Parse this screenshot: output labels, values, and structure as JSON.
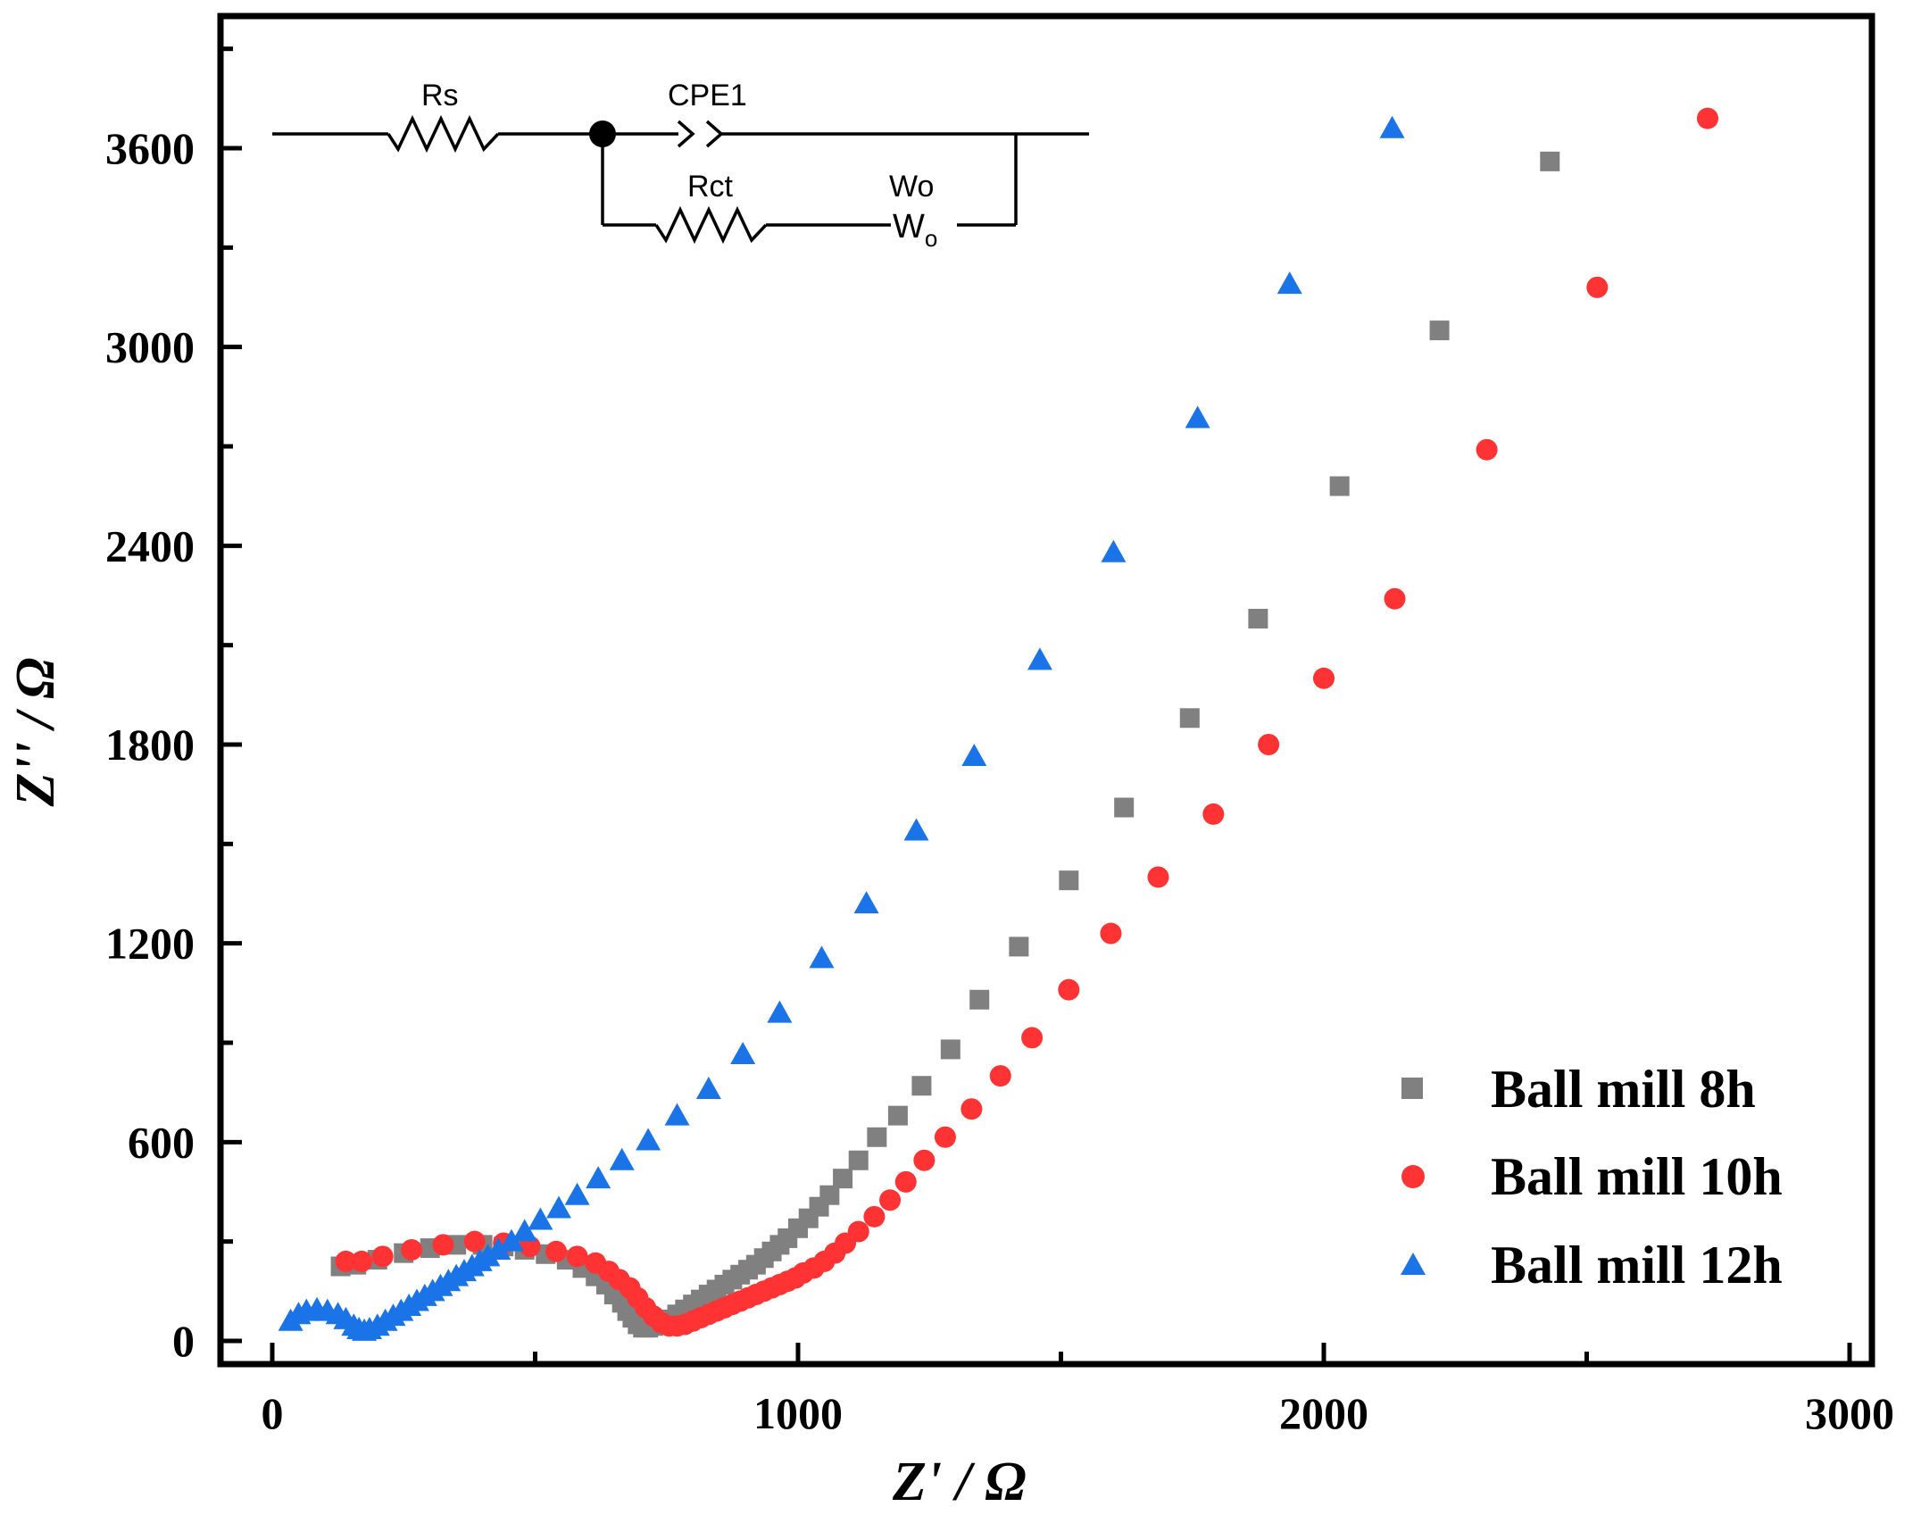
{
  "chart_data": {
    "type": "scatter",
    "title": "",
    "xlabel": "Z' / Ω",
    "ylabel": "Z'' / Ω",
    "xlim": [
      -100,
      3000
    ],
    "ylim": [
      -100,
      4000
    ],
    "x_ticks": [
      "0",
      "1000",
      "2000",
      "3000"
    ],
    "y_ticks": [
      "0",
      "600",
      "1200",
      "1800",
      "2400",
      "3000",
      "3600"
    ],
    "x_tick_values": [
      0,
      1000,
      2000,
      3000
    ],
    "y_tick_values": [
      0,
      600,
      1200,
      1800,
      2400,
      3000,
      3600
    ],
    "legend_position": "bottom-right",
    "series": [
      {
        "name": "Ball mill 8h",
        "marker": "square",
        "color": "#808080",
        "x": [
          130,
          160,
          200,
          250,
          300,
          350,
          400,
          440,
          480,
          520,
          560,
          590,
          615,
          635,
          650,
          665,
          675,
          685,
          695,
          705,
          715,
          725,
          740,
          755,
          770,
          785,
          800,
          815,
          830,
          845,
          860,
          875,
          890,
          905,
          920,
          935,
          950,
          965,
          980,
          1000,
          1020,
          1040,
          1060,
          1085,
          1115,
          1150,
          1190,
          1235,
          1290,
          1345,
          1420,
          1515,
          1620,
          1745,
          1875,
          2030,
          2220,
          2430
        ],
        "y": [
          225,
          230,
          245,
          265,
          280,
          290,
          290,
          285,
          275,
          262,
          245,
          220,
          195,
          170,
          140,
          115,
          90,
          70,
          50,
          40,
          40,
          45,
          55,
          65,
          80,
          95,
          110,
          125,
          140,
          155,
          170,
          185,
          200,
          215,
          230,
          250,
          270,
          290,
          310,
          340,
          370,
          405,
          440,
          490,
          545,
          615,
          680,
          770,
          880,
          1030,
          1190,
          1390,
          1610,
          1880,
          2180,
          2580,
          3050,
          3560
        ]
      },
      {
        "name": "Ball mill 10h",
        "marker": "circle",
        "color": "#ff3333",
        "x": [
          140,
          170,
          210,
          265,
          325,
          385,
          440,
          490,
          540,
          580,
          615,
          640,
          660,
          680,
          695,
          710,
          725,
          740,
          755,
          770,
          785,
          800,
          815,
          830,
          845,
          860,
          875,
          890,
          905,
          920,
          935,
          950,
          965,
          980,
          995,
          1010,
          1030,
          1050,
          1070,
          1090,
          1115,
          1145,
          1175,
          1205,
          1240,
          1280,
          1330,
          1385,
          1445,
          1515,
          1595,
          1685,
          1790,
          1895,
          2000,
          2135,
          2310,
          2520,
          2730
        ],
        "y": [
          240,
          240,
          255,
          275,
          290,
          300,
          295,
          285,
          270,
          255,
          235,
          210,
          185,
          160,
          130,
          100,
          75,
          55,
          45,
          45,
          50,
          60,
          70,
          80,
          90,
          100,
          110,
          120,
          130,
          140,
          150,
          160,
          170,
          180,
          190,
          205,
          220,
          240,
          265,
          295,
          330,
          375,
          425,
          480,
          545,
          615,
          700,
          800,
          915,
          1060,
          1230,
          1400,
          1590,
          1800,
          2000,
          2240,
          2690,
          3180,
          3690
        ]
      },
      {
        "name": "Ball mill 12h",
        "marker": "triangle",
        "color": "#1a74e8",
        "x": [
          35,
          50,
          65,
          85,
          105,
          125,
          140,
          155,
          165,
          175,
          185,
          200,
          215,
          230,
          245,
          260,
          275,
          290,
          305,
          320,
          335,
          350,
          365,
          380,
          395,
          410,
          430,
          455,
          480,
          510,
          545,
          580,
          620,
          665,
          715,
          770,
          830,
          895,
          965,
          1045,
          1130,
          1225,
          1335,
          1460,
          1600,
          1760,
          1935,
          2130
        ],
        "y": [
          60,
          80,
          90,
          95,
          90,
          80,
          65,
          45,
          35,
          30,
          35,
          45,
          60,
          75,
          90,
          105,
          120,
          135,
          150,
          165,
          180,
          195,
          210,
          225,
          240,
          255,
          275,
          300,
          330,
          365,
          400,
          440,
          490,
          545,
          605,
          680,
          760,
          865,
          990,
          1155,
          1320,
          1540,
          1765,
          2055,
          2380,
          2785,
          3190,
          3660
        ]
      }
    ]
  },
  "circuit": {
    "labels": {
      "rs": "Rs",
      "cpe": "CPE1",
      "rct": "Rct",
      "wo": "Wo",
      "wo_symbol": "W",
      "wo_sub": "o"
    }
  }
}
